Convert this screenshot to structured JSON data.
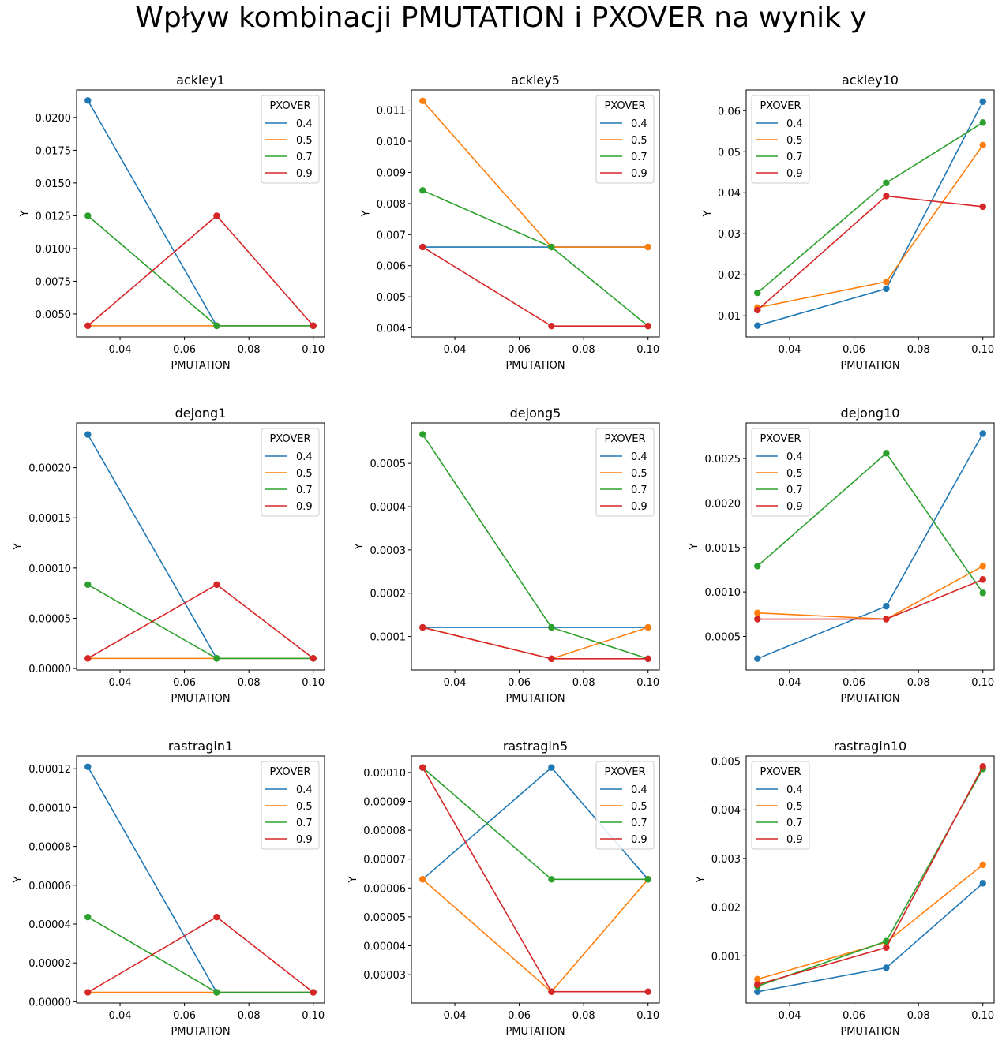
{
  "figure": {
    "suptitle": "Wpływ kombinacji PMUTATION i PXOVER na wynik y"
  },
  "chart_data": [
    {
      "type": "line",
      "title": "ackley1",
      "xlabel": "PMUTATION",
      "ylabel": "Y",
      "legend_title": "PXOVER",
      "legend_loc": "upper right",
      "x": [
        0.03,
        0.07,
        0.1
      ],
      "xticks": [
        0.04,
        0.06,
        0.08,
        0.1
      ],
      "xlim": [
        0.0265,
        0.1035
      ],
      "yticks": [
        0.005,
        0.0075,
        0.01,
        0.0125,
        0.015,
        0.0175,
        0.02
      ],
      "ytick_labels": [
        "0.0050",
        "0.0075",
        "0.0100",
        "0.0125",
        "0.0150",
        "0.0175",
        "0.0200"
      ],
      "ylim": [
        0.00325,
        0.0221
      ],
      "series": [
        {
          "name": "0.4",
          "color": "#1f77b4",
          "values": [
            0.0213,
            0.0041,
            0.0041
          ]
        },
        {
          "name": "0.5",
          "color": "#ff7f0e",
          "values": [
            0.0041,
            0.0041,
            0.0041
          ]
        },
        {
          "name": "0.7",
          "color": "#2ca02c",
          "values": [
            0.0125,
            0.0041,
            0.0041
          ]
        },
        {
          "name": "0.9",
          "color": "#d62728",
          "values": [
            0.0041,
            0.0125,
            0.0041
          ]
        }
      ]
    },
    {
      "type": "line",
      "title": "ackley5",
      "xlabel": "PMUTATION",
      "ylabel": "Y",
      "legend_title": "PXOVER",
      "legend_loc": "upper right",
      "x": [
        0.03,
        0.07,
        0.1
      ],
      "xticks": [
        0.04,
        0.06,
        0.08,
        0.1
      ],
      "xlim": [
        0.0265,
        0.1035
      ],
      "yticks": [
        0.004,
        0.005,
        0.006,
        0.007,
        0.008,
        0.009,
        0.01,
        0.011
      ],
      "ytick_labels": [
        "0.004",
        "0.005",
        "0.006",
        "0.007",
        "0.008",
        "0.009",
        "0.010",
        "0.011"
      ],
      "ylim": [
        0.00371,
        0.01165
      ],
      "series": [
        {
          "name": "0.4",
          "color": "#1f77b4",
          "values": [
            0.0066,
            0.0066,
            0.0066
          ]
        },
        {
          "name": "0.5",
          "color": "#ff7f0e",
          "values": [
            0.0113,
            0.0066,
            0.0066
          ]
        },
        {
          "name": "0.7",
          "color": "#2ca02c",
          "values": [
            0.00842,
            0.0066,
            0.00406
          ]
        },
        {
          "name": "0.9",
          "color": "#d62728",
          "values": [
            0.0066,
            0.00406,
            0.00406
          ]
        }
      ]
    },
    {
      "type": "line",
      "title": "ackley10",
      "xlabel": "PMUTATION",
      "ylabel": "Y",
      "legend_title": "PXOVER",
      "legend_loc": "upper left",
      "x": [
        0.03,
        0.07,
        0.1
      ],
      "xticks": [
        0.04,
        0.06,
        0.08,
        0.1
      ],
      "xlim": [
        0.0265,
        0.1035
      ],
      "yticks": [
        0.01,
        0.02,
        0.03,
        0.04,
        0.05,
        0.06
      ],
      "ytick_labels": [
        "0.01",
        "0.02",
        "0.03",
        "0.04",
        "0.05",
        "0.06"
      ],
      "ylim": [
        0.00485,
        0.06505
      ],
      "series": [
        {
          "name": "0.4",
          "color": "#1f77b4",
          "values": [
            0.0076,
            0.0166,
            0.0622
          ]
        },
        {
          "name": "0.5",
          "color": "#ff7f0e",
          "values": [
            0.012,
            0.0183,
            0.0516
          ]
        },
        {
          "name": "0.7",
          "color": "#2ca02c",
          "values": [
            0.0156,
            0.0424,
            0.0571
          ]
        },
        {
          "name": "0.9",
          "color": "#d62728",
          "values": [
            0.0114,
            0.0392,
            0.0366
          ]
        }
      ]
    },
    {
      "type": "line",
      "title": "dejong1",
      "xlabel": "PMUTATION",
      "ylabel": "Y",
      "legend_title": "PXOVER",
      "legend_loc": "upper right",
      "x": [
        0.03,
        0.07,
        0.1
      ],
      "xticks": [
        0.04,
        0.06,
        0.08,
        0.1
      ],
      "xlim": [
        0.0265,
        0.1035
      ],
      "yticks": [
        0,
        5e-05,
        0.0001,
        0.00015,
        0.0002
      ],
      "ytick_labels": [
        "0.00000",
        "0.00005",
        "0.00010",
        "0.00015",
        "0.00020"
      ],
      "ylim": [
        -1.5e-06,
        0.0002445
      ],
      "series": [
        {
          "name": "0.4",
          "color": "#1f77b4",
          "values": [
            0.000233,
            1e-05,
            1e-05
          ]
        },
        {
          "name": "0.5",
          "color": "#ff7f0e",
          "values": [
            1e-05,
            1e-05,
            1e-05
          ]
        },
        {
          "name": "0.7",
          "color": "#2ca02c",
          "values": [
            8.35e-05,
            1e-05,
            1e-05
          ]
        },
        {
          "name": "0.9",
          "color": "#d62728",
          "values": [
            1e-05,
            8.35e-05,
            1e-05
          ]
        }
      ]
    },
    {
      "type": "line",
      "title": "dejong5",
      "xlabel": "PMUTATION",
      "ylabel": "Y",
      "legend_title": "PXOVER",
      "legend_loc": "upper right",
      "x": [
        0.03,
        0.07,
        0.1
      ],
      "xticks": [
        0.04,
        0.06,
        0.08,
        0.1
      ],
      "xlim": [
        0.0265,
        0.1035
      ],
      "yticks": [
        0.0001,
        0.0002,
        0.0003,
        0.0004,
        0.0005
      ],
      "ytick_labels": [
        "0.0001",
        "0.0002",
        "0.0003",
        "0.0004",
        "0.0005"
      ],
      "ylim": [
        2.27e-05,
        0.0005933
      ],
      "series": [
        {
          "name": "0.4",
          "color": "#1f77b4",
          "values": [
            0.000121,
            0.000121,
            0.000121
          ]
        },
        {
          "name": "0.5",
          "color": "#ff7f0e",
          "values": [
            0.000121,
            4.85e-05,
            0.000121
          ]
        },
        {
          "name": "0.7",
          "color": "#2ca02c",
          "values": [
            0.000567,
            0.000121,
            4.85e-05
          ]
        },
        {
          "name": "0.9",
          "color": "#d62728",
          "values": [
            0.000121,
            4.85e-05,
            4.85e-05
          ]
        }
      ]
    },
    {
      "type": "line",
      "title": "dejong10",
      "xlabel": "PMUTATION",
      "ylabel": "Y",
      "legend_title": "PXOVER",
      "legend_loc": "upper left",
      "x": [
        0.03,
        0.07,
        0.1
      ],
      "xticks": [
        0.04,
        0.06,
        0.08,
        0.1
      ],
      "xlim": [
        0.0265,
        0.1035
      ],
      "yticks": [
        0.0005,
        0.001,
        0.0015,
        0.002,
        0.0025
      ],
      "ytick_labels": [
        "0.0005",
        "0.0010",
        "0.0015",
        "0.0020",
        "0.0025"
      ],
      "ylim": [
        0.000123,
        0.0029
      ],
      "series": [
        {
          "name": "0.4",
          "color": "#1f77b4",
          "values": [
            0.00025,
            0.00084,
            0.00278
          ]
        },
        {
          "name": "0.5",
          "color": "#ff7f0e",
          "values": [
            0.000765,
            0.000695,
            0.00129
          ]
        },
        {
          "name": "0.7",
          "color": "#2ca02c",
          "values": [
            0.00129,
            0.00256,
            0.00099
          ]
        },
        {
          "name": "0.9",
          "color": "#d62728",
          "values": [
            0.000695,
            0.000695,
            0.00114
          ]
        }
      ]
    },
    {
      "type": "line",
      "title": "rastragin1",
      "xlabel": "PMUTATION",
      "ylabel": "Y",
      "legend_title": "PXOVER",
      "legend_loc": "upper right",
      "x": [
        0.03,
        0.07,
        0.1
      ],
      "xticks": [
        0.04,
        0.06,
        0.08,
        0.1
      ],
      "xlim": [
        0.0265,
        0.1035
      ],
      "yticks": [
        0,
        2e-05,
        4e-05,
        6e-05,
        8e-05,
        0.0001,
        0.00012
      ],
      "ytick_labels": [
        "0.00000",
        "0.00002",
        "0.00004",
        "0.00006",
        "0.00008",
        "0.00010",
        "0.00012"
      ],
      "ylim": [
        -6.6e-07,
        0.0001266
      ],
      "series": [
        {
          "name": "0.4",
          "color": "#1f77b4",
          "values": [
            0.000121,
            4.8e-06,
            4.8e-06
          ]
        },
        {
          "name": "0.5",
          "color": "#ff7f0e",
          "values": [
            4.8e-06,
            4.8e-06,
            4.8e-06
          ]
        },
        {
          "name": "0.7",
          "color": "#2ca02c",
          "values": [
            4.36e-05,
            4.8e-06,
            4.8e-06
          ]
        },
        {
          "name": "0.9",
          "color": "#d62728",
          "values": [
            4.8e-06,
            4.36e-05,
            4.8e-06
          ]
        }
      ]
    },
    {
      "type": "line",
      "title": "rastragin5",
      "xlabel": "PMUTATION",
      "ylabel": "Y",
      "legend_title": "PXOVER",
      "legend_loc": "upper right",
      "x": [
        0.03,
        0.07,
        0.1
      ],
      "xticks": [
        0.04,
        0.06,
        0.08,
        0.1
      ],
      "xlim": [
        0.0265,
        0.1035
      ],
      "yticks": [
        3e-05,
        4e-05,
        5e-05,
        6e-05,
        7e-05,
        8e-05,
        9e-05,
        0.0001
      ],
      "ytick_labels": [
        "0.00003",
        "0.00004",
        "0.00005",
        "0.00006",
        "0.00007",
        "0.00008",
        "0.00009",
        "0.00010"
      ],
      "ylim": [
        2.02e-05,
        0.0001057
      ],
      "series": [
        {
          "name": "0.4",
          "color": "#1f77b4",
          "values": [
            6.3e-05,
            0.0001017,
            6.3e-05
          ]
        },
        {
          "name": "0.5",
          "color": "#ff7f0e",
          "values": [
            6.3e-05,
            2.41e-05,
            6.3e-05
          ]
        },
        {
          "name": "0.7",
          "color": "#2ca02c",
          "values": [
            0.0001017,
            6.3e-05,
            6.3e-05
          ]
        },
        {
          "name": "0.9",
          "color": "#d62728",
          "values": [
            0.0001017,
            2.41e-05,
            2.41e-05
          ]
        }
      ]
    },
    {
      "type": "line",
      "title": "rastragin10",
      "xlabel": "PMUTATION",
      "ylabel": "Y",
      "legend_title": "PXOVER",
      "legend_loc": "upper left",
      "x": [
        0.03,
        0.07,
        0.1
      ],
      "xticks": [
        0.04,
        0.06,
        0.08,
        0.1
      ],
      "xlim": [
        0.0265,
        0.1035
      ],
      "yticks": [
        0.001,
        0.002,
        0.003,
        0.004,
        0.005
      ],
      "ytick_labels": [
        "0.001",
        "0.002",
        "0.003",
        "0.004",
        "0.005"
      ],
      "ylim": [
        3.15e-05,
        0.005106
      ],
      "series": [
        {
          "name": "0.4",
          "color": "#1f77b4",
          "values": [
            0.000262,
            0.000754,
            0.00249
          ]
        },
        {
          "name": "0.5",
          "color": "#ff7f0e",
          "values": [
            0.00052,
            0.00128,
            0.00287
          ]
        },
        {
          "name": "0.7",
          "color": "#2ca02c",
          "values": [
            0.000375,
            0.0013,
            0.00484
          ]
        },
        {
          "name": "0.9",
          "color": "#d62728",
          "values": [
            0.00041,
            0.00117,
            0.00489
          ]
        }
      ]
    }
  ]
}
